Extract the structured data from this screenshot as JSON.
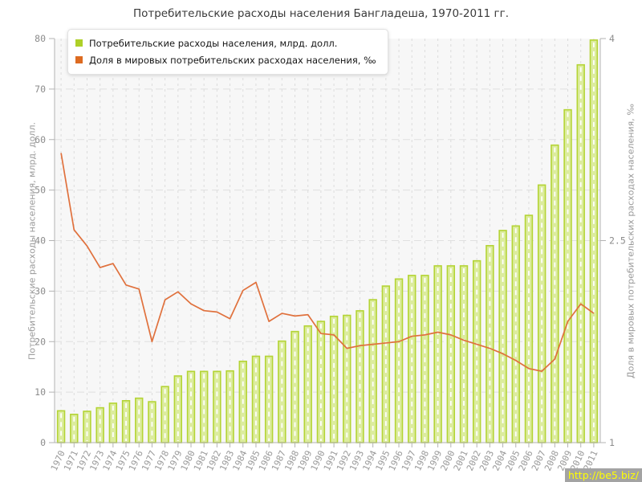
{
  "title": "Потребительские расходы населения Бангладеша, 1970-2011 гг.",
  "legend": {
    "items": [
      {
        "label": "Потребительские расходы населения, млрд. долл.",
        "color": "#aed028"
      },
      {
        "label": "Доля в мировых потребительских расходах населения, ‰",
        "color": "#dd6b21"
      }
    ]
  },
  "watermark": {
    "text": "http://be5.biz/"
  },
  "colors": {
    "bar_fill": "#dcec9e",
    "bar_edge": "#b4d435",
    "bar_stripe": "#ffffff",
    "line": "#e0713d",
    "plot_bg": "#f7f7f7",
    "grid_h": "#e0e0e0",
    "grid_v": "#dcdcdc",
    "axis": "#b3b3b3",
    "watermark_bg": "#a3a3a3",
    "watermark_text": "#ffff00"
  },
  "chart_data": {
    "type": "bar",
    "title": "Потребительские расходы населения Бангладеша, 1970-2011 гг.",
    "categories": [
      "1970",
      "1971",
      "1972",
      "1973",
      "1974",
      "1975",
      "1976",
      "1977",
      "1978",
      "1979",
      "1980",
      "1981",
      "1982",
      "1983",
      "1984",
      "1985",
      "1986",
      "1987",
      "1988",
      "1989",
      "1990",
      "1991",
      "1992",
      "1993",
      "1994",
      "1995",
      "1996",
      "1997",
      "1998",
      "1999",
      "2000",
      "2001",
      "2002",
      "2003",
      "2004",
      "2005",
      "2006",
      "2007",
      "2008",
      "2009",
      "2010",
      "2011"
    ],
    "series": [
      {
        "name": "Потребительские расходы населения, млрд. долл.",
        "type": "bar",
        "axis": "left",
        "values": [
          6.3,
          5.6,
          6.2,
          6.9,
          7.8,
          8.3,
          8.8,
          8.1,
          11.1,
          13.2,
          14.1,
          14.1,
          14.1,
          14.2,
          16.1,
          17.1,
          17.1,
          20.1,
          22.0,
          23.1,
          24.0,
          25.0,
          25.2,
          26.1,
          28.3,
          31.0,
          32.4,
          33.1,
          33.1,
          35.0,
          35.0,
          35.0,
          36.0,
          39.0,
          42.0,
          42.9,
          45.0,
          51.0,
          58.9,
          65.9,
          74.8,
          79.7
        ]
      },
      {
        "name": "Доля в мировых потребительских расходах населения, ‰",
        "type": "line",
        "axis": "right",
        "values": [
          3.15,
          2.58,
          2.46,
          2.3,
          2.33,
          2.17,
          2.14,
          1.75,
          2.06,
          2.12,
          2.03,
          1.98,
          1.97,
          1.92,
          2.13,
          2.19,
          1.9,
          1.96,
          1.94,
          1.95,
          1.81,
          1.8,
          1.7,
          1.72,
          1.73,
          1.74,
          1.75,
          1.79,
          1.8,
          1.82,
          1.8,
          1.76,
          1.73,
          1.7,
          1.66,
          1.61,
          1.55,
          1.53,
          1.62,
          1.9,
          2.03,
          1.96
        ]
      }
    ],
    "left_axis": {
      "label": "Потребительские расходы населения, млрд. долл.",
      "min": 0,
      "max": 80,
      "ticks": [
        0,
        10,
        20,
        30,
        40,
        50,
        60,
        70,
        80
      ]
    },
    "right_axis": {
      "label": "Доля в мировых потребительских расходах населения, ‰",
      "min": 1,
      "max": 4,
      "ticks": [
        1,
        2.5,
        4
      ]
    },
    "grid": true,
    "legend_position": "top-left"
  }
}
